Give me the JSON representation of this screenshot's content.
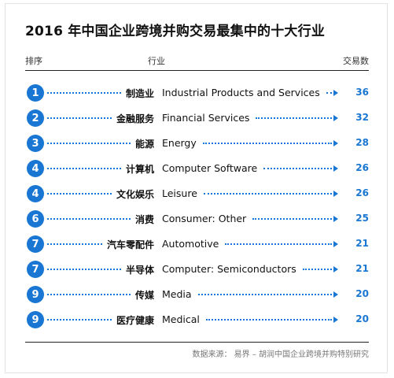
{
  "chart_data": {
    "type": "table",
    "title": "2016 年中国企业跨境并购交易最集中的十大行业",
    "columns": [
      "排序",
      "行业",
      "交易数"
    ],
    "rows": [
      {
        "rank": "1",
        "industry_cn": "制造业",
        "industry_en": "Industrial Products and Services",
        "count": 36
      },
      {
        "rank": "2",
        "industry_cn": "金融服务",
        "industry_en": "Financial Services",
        "count": 32
      },
      {
        "rank": "3",
        "industry_cn": "能源",
        "industry_en": "Energy",
        "count": 28
      },
      {
        "rank": "4",
        "industry_cn": "计算机",
        "industry_en": "Computer Software",
        "count": 26
      },
      {
        "rank": "4",
        "industry_cn": "文化娱乐",
        "industry_en": "Leisure",
        "count": 26
      },
      {
        "rank": "6",
        "industry_cn": "消费",
        "industry_en": "Consumer: Other",
        "count": 25
      },
      {
        "rank": "7",
        "industry_cn": "汽车零配件",
        "industry_en": "Automotive",
        "count": 21
      },
      {
        "rank": "7",
        "industry_cn": "半导体",
        "industry_en": "Computer: Semiconductors",
        "count": 21
      },
      {
        "rank": "9",
        "industry_cn": "传媒",
        "industry_en": "Media",
        "count": 20
      },
      {
        "rank": "9",
        "industry_cn": "医疗健康",
        "industry_en": "Medical",
        "count": 20
      }
    ],
    "source": "数据来源： 易界 – 胡润中国企业跨境并购特别研究",
    "accent_color": "#1976d2"
  }
}
